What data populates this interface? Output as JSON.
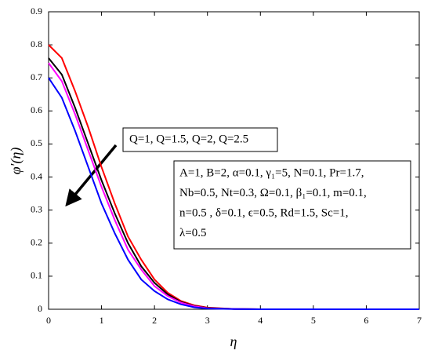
{
  "chart_data": {
    "type": "line",
    "xlabel": "η",
    "ylabel": "φ′(η)",
    "x": [
      0,
      0.25,
      0.5,
      0.75,
      1,
      1.25,
      1.5,
      1.75,
      2,
      2.25,
      2.5,
      2.75,
      3,
      3.5,
      4,
      5,
      6,
      7
    ],
    "series": [
      {
        "color": "#ff0000",
        "values": [
          0.8,
          0.76,
          0.66,
          0.55,
          0.43,
          0.32,
          0.22,
          0.15,
          0.09,
          0.05,
          0.025,
          0.012,
          0.005,
          0.001,
          0,
          0,
          0,
          0
        ]
      },
      {
        "color": "#000000",
        "values": [
          0.76,
          0.71,
          0.61,
          0.5,
          0.39,
          0.29,
          0.2,
          0.13,
          0.08,
          0.045,
          0.022,
          0.01,
          0.004,
          0.001,
          0,
          0,
          0,
          0
        ]
      },
      {
        "color": "#ff00ff",
        "values": [
          0.745,
          0.69,
          0.59,
          0.48,
          0.37,
          0.27,
          0.18,
          0.12,
          0.07,
          0.04,
          0.02,
          0.009,
          0.003,
          0.001,
          0,
          0,
          0,
          0
        ]
      },
      {
        "color": "#0000ff",
        "values": [
          0.7,
          0.64,
          0.54,
          0.43,
          0.32,
          0.23,
          0.15,
          0.09,
          0.055,
          0.03,
          0.015,
          0.006,
          0.002,
          0.0005,
          0,
          0,
          0,
          0
        ]
      }
    ],
    "xlim": [
      0,
      7
    ],
    "xticks": [
      0,
      1,
      2,
      3,
      4,
      5,
      6,
      7
    ],
    "ylim": [
      0,
      0.9
    ],
    "yticks": [
      0,
      0.1,
      0.2,
      0.3,
      0.4,
      0.5,
      0.6,
      0.7,
      0.8,
      0.9
    ],
    "annotations": [
      "Q=1, Q=1.5, Q=2, Q=2.5"
    ],
    "parameters": [
      "A=1, B=2, α=0.1, γ₁=5, N=0.1, Pr=1.7,",
      "Nb=0.5, Nt=0.3, Ω=0.1, β₁=0.1, m=0.1,",
      "n=0.5 ,  δ=0.1,  ϵ=0.5,  Rd=1.5,  Sc=1,",
      "λ=0.5"
    ]
  }
}
